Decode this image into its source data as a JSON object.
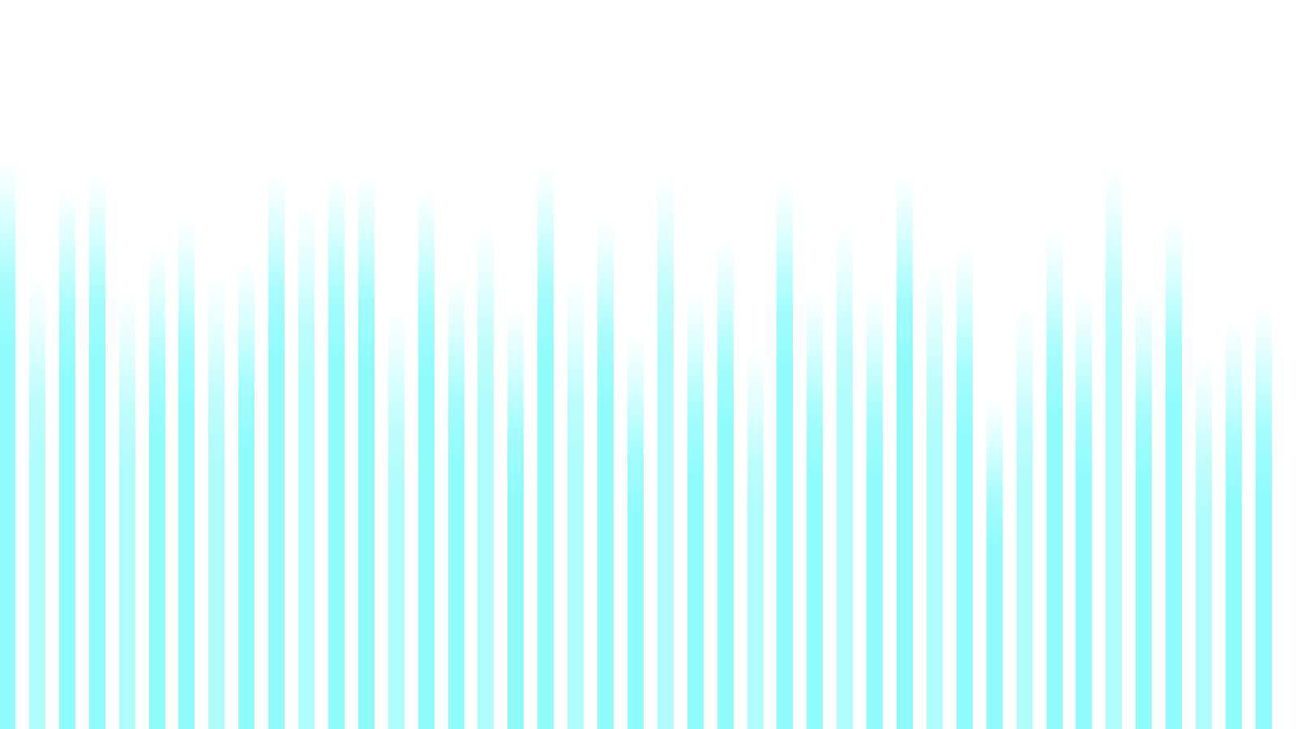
{
  "visualizer": {
    "bar_color": "#8ffcfc",
    "bar_color_light": "#aefcfc",
    "background": "#ffffff",
    "levels": [
      0.78,
      0.62,
      0.74,
      0.76,
      0.6,
      0.66,
      0.7,
      0.62,
      0.64,
      0.76,
      0.72,
      0.76,
      0.76,
      0.58,
      0.74,
      0.62,
      0.69,
      0.58,
      0.77,
      0.62,
      0.7,
      0.54,
      0.76,
      0.6,
      0.67,
      0.52,
      0.75,
      0.6,
      0.69,
      0.6,
      0.76,
      0.64,
      0.66,
      0.45,
      0.58,
      0.68,
      0.6,
      0.77,
      0.6,
      0.7,
      0.51,
      0.56,
      0.58
    ]
  }
}
